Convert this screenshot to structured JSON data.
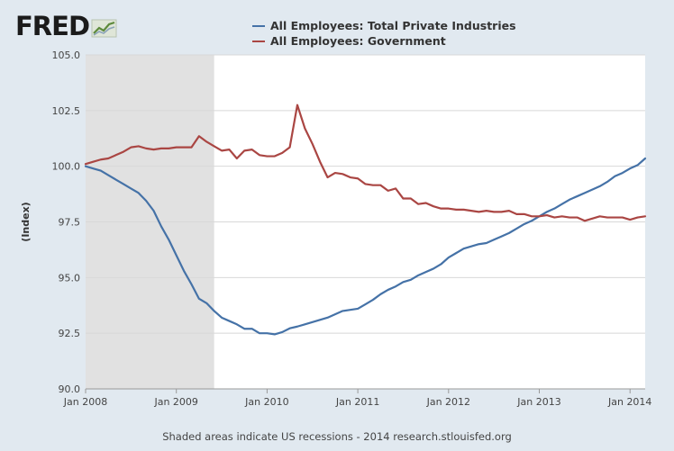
{
  "logo": {
    "text": "FRED"
  },
  "colors": {
    "private": "#4572a7",
    "government": "#aa4643",
    "recession": "#e1e1e1",
    "grid": "#d8d8d8",
    "plot_bg": "#ffffff"
  },
  "footer": {
    "text": "Shaded areas indicate US recessions - 2014 research.stlouisfed.org"
  },
  "chart_data": {
    "type": "line",
    "title": "",
    "xlabel": "",
    "ylabel": "(Index)",
    "x_start": "2008-01",
    "ylim": [
      90.0,
      105.0
    ],
    "yticks": [
      90.0,
      92.5,
      95.0,
      97.5,
      100.0,
      102.5,
      105.0
    ],
    "ytick_labels": [
      "90.0",
      "92.5",
      "95.0",
      "97.5",
      "100.0",
      "102.5",
      "105.0"
    ],
    "xticks": [
      0,
      12,
      24,
      36,
      48,
      60,
      72
    ],
    "xtick_labels": [
      "Jan 2008",
      "Jan 2009",
      "Jan 2010",
      "Jan 2011",
      "Jan 2012",
      "Jan 2013",
      "Jan 2014"
    ],
    "xlim": [
      0,
      74
    ],
    "recession": {
      "start": 0,
      "end": 17
    },
    "series": [
      {
        "name": "All Employees: Total Private Industries",
        "color": "#4572a7",
        "values": [
          100.0,
          99.9,
          99.8,
          99.6,
          99.4,
          99.2,
          99.0,
          98.8,
          98.45,
          98.0,
          97.3,
          96.7,
          96.0,
          95.3,
          94.7,
          94.05,
          93.85,
          93.5,
          93.2,
          93.05,
          92.9,
          92.7,
          92.7,
          92.5,
          92.5,
          92.45,
          92.55,
          92.72,
          92.8,
          92.9,
          93.0,
          93.1,
          93.2,
          93.35,
          93.5,
          93.55,
          93.6,
          93.8,
          94.0,
          94.25,
          94.45,
          94.6,
          94.8,
          94.9,
          95.1,
          95.25,
          95.4,
          95.6,
          95.9,
          96.1,
          96.3,
          96.4,
          96.5,
          96.55,
          96.7,
          96.85,
          97.0,
          97.2,
          97.4,
          97.55,
          97.75,
          97.95,
          98.1,
          98.3,
          98.5,
          98.65,
          98.8,
          98.95,
          99.1,
          99.3,
          99.55,
          99.7,
          99.9,
          100.05,
          100.35
        ]
      },
      {
        "name": "All Employees: Government",
        "color": "#aa4643",
        "values": [
          100.1,
          100.2,
          100.3,
          100.35,
          100.5,
          100.65,
          100.85,
          100.9,
          100.8,
          100.75,
          100.8,
          100.8,
          100.85,
          100.85,
          100.85,
          101.35,
          101.1,
          100.9,
          100.7,
          100.75,
          100.35,
          100.7,
          100.75,
          100.5,
          100.45,
          100.45,
          100.6,
          100.85,
          102.75,
          101.7,
          101.0,
          100.2,
          99.5,
          99.7,
          99.65,
          99.5,
          99.45,
          99.2,
          99.15,
          99.15,
          98.9,
          99.0,
          98.55,
          98.55,
          98.3,
          98.35,
          98.2,
          98.1,
          98.1,
          98.05,
          98.05,
          98.0,
          97.95,
          98.0,
          97.95,
          97.95,
          98.0,
          97.85,
          97.85,
          97.75,
          97.75,
          97.8,
          97.7,
          97.75,
          97.7,
          97.7,
          97.55,
          97.65,
          97.75,
          97.7,
          97.7,
          97.7,
          97.6,
          97.7,
          97.75
        ]
      }
    ]
  }
}
